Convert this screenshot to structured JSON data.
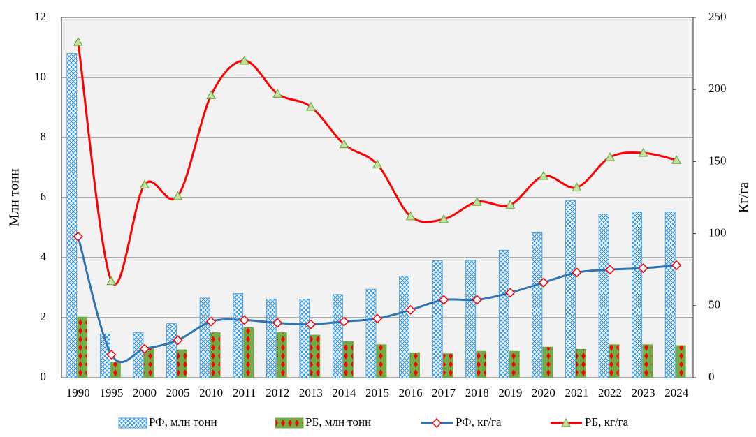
{
  "chart_data": {
    "type": "bar",
    "y_label": "Млн тонн",
    "y2_label": "Кг/га",
    "categories": [
      "1990",
      "1995",
      "2000",
      "2005",
      "2010",
      "2011",
      "2012",
      "2013",
      "2014",
      "2015",
      "2016",
      "2017",
      "2018",
      "2019",
      "2020",
      "2021",
      "2022",
      "2023",
      "2024"
    ],
    "ylim": [
      0,
      12
    ],
    "yticks": [
      0,
      2,
      4,
      6,
      8,
      10,
      12
    ],
    "y2lim": [
      0,
      250
    ],
    "y2ticks": [
      0,
      50,
      100,
      150,
      200,
      250
    ],
    "grid": true,
    "legend": "bottom",
    "series": [
      {
        "name": "РФ, млн тонн",
        "type": "bar",
        "color": "#3d9be0",
        "values": [
          10.8,
          1.45,
          1.5,
          1.8,
          2.65,
          2.8,
          2.62,
          2.62,
          2.77,
          2.95,
          3.38,
          3.9,
          3.92,
          4.25,
          4.83,
          5.9,
          5.45,
          5.52,
          5.52
        ]
      },
      {
        "name": "РБ, млн тонн",
        "type": "bar",
        "color": "#70ad47",
        "values": [
          2.02,
          0.52,
          1.02,
          0.93,
          1.5,
          1.67,
          1.5,
          1.42,
          1.2,
          1.1,
          0.83,
          0.8,
          0.88,
          0.88,
          1.02,
          0.95,
          1.1,
          1.1,
          1.07
        ]
      },
      {
        "name": "РФ, кг/га",
        "type": "line",
        "axis": "y2",
        "color": "#2e75b6",
        "marker": "diamond",
        "values": [
          98,
          16,
          20,
          26,
          39,
          40,
          38,
          37,
          39,
          41,
          47,
          54,
          54,
          59,
          66,
          73,
          75,
          76,
          78
        ]
      },
      {
        "name": "РБ, кг/га",
        "type": "line",
        "axis": "y2",
        "color": "#ff0000",
        "marker": "triangle",
        "values": [
          233,
          67,
          134,
          126,
          196,
          220,
          197,
          188,
          162,
          148,
          112,
          110,
          122,
          120,
          140,
          132,
          153,
          156,
          151
        ]
      }
    ]
  }
}
